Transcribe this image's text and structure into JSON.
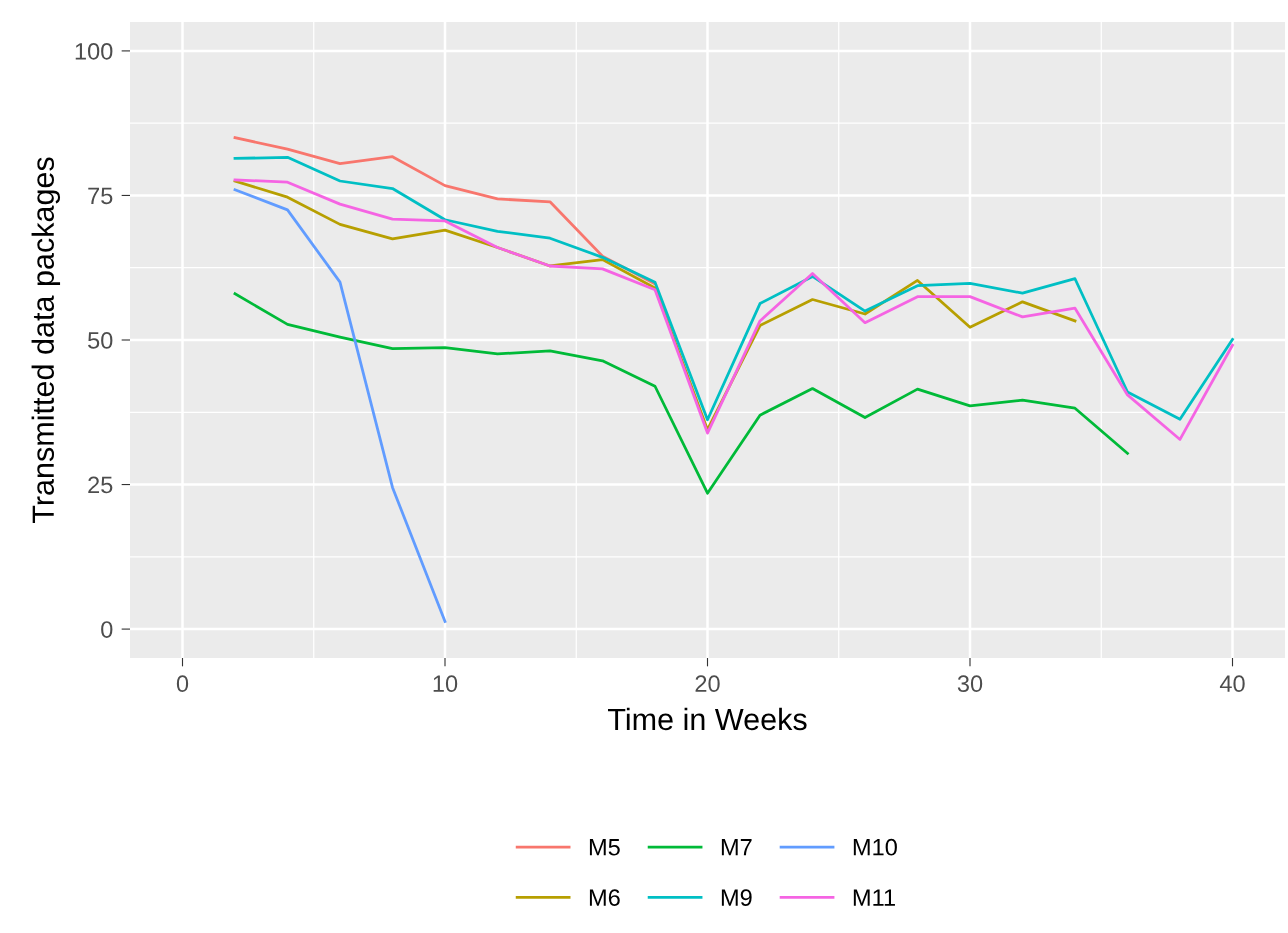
{
  "chart_data": {
    "type": "line",
    "xlabel": "Time in Weeks",
    "ylabel": "Transmitted data packages",
    "x": [
      2,
      4,
      6,
      8,
      10,
      12,
      14,
      16,
      18,
      20,
      22,
      24,
      26,
      28,
      30,
      32,
      34,
      36,
      38,
      40
    ],
    "series": [
      {
        "name": "M5",
        "color": "#f8766d",
        "values": [
          85,
          83,
          80.5,
          81.7,
          76.7,
          74.4,
          73.9,
          64.5,
          59.7,
          null,
          null,
          null,
          null,
          null,
          null,
          null,
          null,
          null,
          null,
          null
        ]
      },
      {
        "name": "M6",
        "color": "#b79f00",
        "values": [
          77.5,
          74.7,
          70,
          67.5,
          69,
          66,
          62.8,
          63.9,
          59,
          34.5,
          52.5,
          57,
          54.5,
          60.3,
          52.2,
          56.6,
          53.3,
          null,
          null,
          null
        ]
      },
      {
        "name": "M7",
        "color": "#00ba38",
        "values": [
          58,
          52.7,
          50.5,
          48.5,
          48.7,
          47.6,
          48.1,
          46.4,
          42,
          23.5,
          37,
          41.6,
          36.6,
          41.5,
          38.6,
          39.6,
          38.2,
          30.4,
          null,
          null
        ]
      },
      {
        "name": "M9",
        "color": "#00bfc4",
        "values": [
          81.4,
          81.6,
          77.5,
          76.2,
          70.8,
          68.8,
          67.6,
          64.3,
          60,
          36.2,
          56.3,
          61,
          55,
          59.4,
          59.8,
          58.1,
          60.6,
          41,
          36.3,
          50.1
        ]
      },
      {
        "name": "M10",
        "color": "#619cff",
        "values": [
          76,
          72.5,
          60,
          24.5,
          1.3,
          null,
          null,
          null,
          null,
          null,
          null,
          null,
          null,
          null,
          null,
          null,
          null,
          null,
          null,
          null
        ]
      },
      {
        "name": "M11",
        "color": "#f564e3",
        "values": [
          77.7,
          77.3,
          73.5,
          70.9,
          70.6,
          66,
          62.8,
          62.3,
          58.7,
          33.9,
          53.3,
          61.5,
          53,
          57.5,
          57.5,
          54,
          55.5,
          40.5,
          32.8,
          49.1
        ]
      }
    ],
    "xlim": [
      -2,
      42
    ],
    "xticks": [
      0,
      10,
      20,
      30,
      40
    ],
    "ylim": [
      -5,
      105
    ],
    "yticks": [
      0,
      25,
      50,
      75,
      100
    ],
    "grid": true,
    "legend": "bottom",
    "marker": "none",
    "line_style": "solid"
  }
}
